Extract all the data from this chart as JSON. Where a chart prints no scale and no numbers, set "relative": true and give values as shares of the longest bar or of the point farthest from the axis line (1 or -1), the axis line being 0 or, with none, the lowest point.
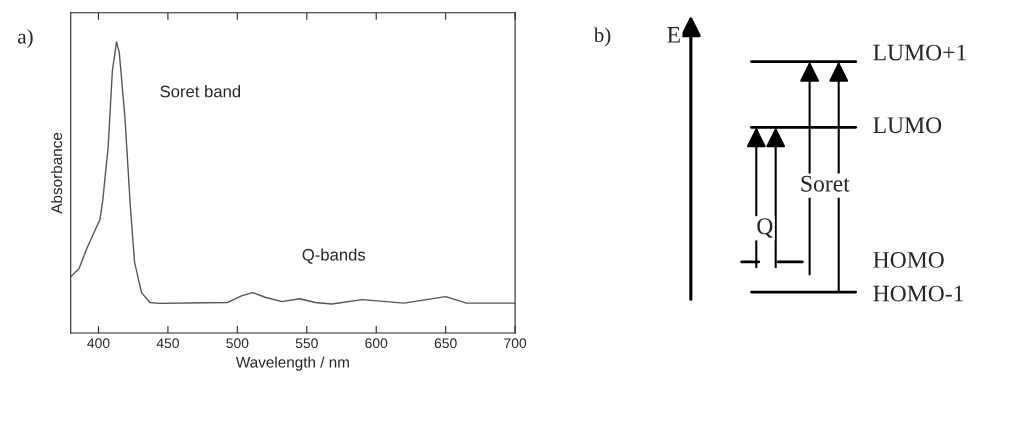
{
  "chart_data": [
    {
      "type": "line",
      "title": "a)",
      "xlabel": "Wavelength / nm",
      "ylabel": "Absorbance",
      "relative": true,
      "xlim": [
        380,
        700
      ],
      "xticks": [
        400,
        450,
        500,
        550,
        600,
        650,
        700
      ],
      "series": [
        {
          "color": "#555555",
          "x": [
            380,
            386,
            392,
            396,
            401,
            403,
            407,
            410,
            413,
            415,
            419,
            423,
            426,
            431,
            437,
            444,
            476,
            493,
            503,
            511,
            520,
            532,
            545,
            556,
            568,
            590,
            620,
            650,
            665,
            700
          ],
          "values": [
            0.193,
            0.222,
            0.295,
            0.337,
            0.389,
            0.452,
            0.64,
            0.901,
            1.0,
            0.963,
            0.744,
            0.431,
            0.243,
            0.139,
            0.105,
            0.102,
            0.104,
            0.105,
            0.128,
            0.139,
            0.123,
            0.108,
            0.118,
            0.105,
            0.1,
            0.115,
            0.103,
            0.125,
            0.103,
            0.103
          ]
        }
      ],
      "annotations": [
        "Soret band",
        "Q-bands"
      ],
      "grid": false,
      "legend": false
    },
    {
      "type": "other",
      "title": "b)",
      "annotations": [
        "E",
        "LUMO+1",
        "LUMO",
        "Soret",
        "Q",
        "HOMO",
        "HOMO-1"
      ]
    }
  ]
}
